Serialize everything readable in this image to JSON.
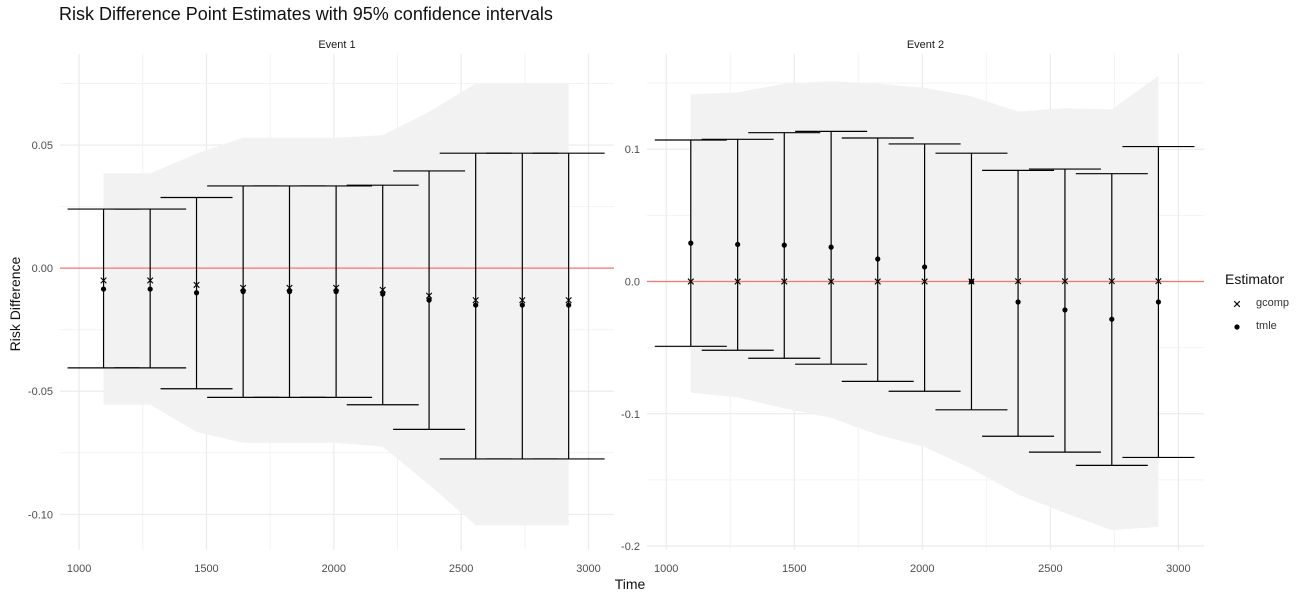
{
  "chart_data": {
    "type": "errorbar",
    "title": "Risk Difference Point Estimates with 95% confidence intervals",
    "xlabel": "Time",
    "ylabel": "Risk Difference",
    "legend": {
      "title": "Estimator",
      "position": "right",
      "entries": [
        "gcomp",
        "tmle"
      ]
    },
    "reference_line": {
      "y": 0,
      "color": "#f8766d"
    },
    "colors": {
      "band": "#f2f2f2",
      "grid_major": "#ebebeb",
      "grid_minor": "#f3f3f3",
      "marks": "#000000"
    },
    "panels": [
      {
        "strip": "Event 1",
        "xlim": [
          925,
          3100
        ],
        "ylim": [
          -0.1145,
          0.087
        ],
        "xticks": [
          1000,
          1500,
          2000,
          2500,
          3000
        ],
        "xtick_labels": [
          "1000",
          "1500",
          "2000",
          "2500",
          "3000"
        ],
        "yticks": [
          -0.1,
          -0.05,
          0.0,
          0.05
        ],
        "ytick_labels": [
          "-0.10",
          "-0.05",
          "0.00",
          "0.05"
        ],
        "time": [
          1096,
          1279,
          1461,
          1644,
          1826,
          2009,
          2192,
          2374,
          2557,
          2740,
          2922
        ],
        "gcomp": [
          -0.005,
          -0.005,
          -0.0068,
          -0.008,
          -0.008,
          -0.008,
          -0.0088,
          -0.0112,
          -0.013,
          -0.013,
          -0.013
        ],
        "tmle": [
          -0.0085,
          -0.0085,
          -0.01,
          -0.0095,
          -0.0095,
          -0.0095,
          -0.0105,
          -0.013,
          -0.015,
          -0.015,
          -0.015
        ],
        "ci_lower": [
          -0.0405,
          -0.0405,
          -0.049,
          -0.0525,
          -0.0525,
          -0.0525,
          -0.0555,
          -0.0655,
          -0.0775,
          -0.0775,
          -0.0775
        ],
        "ci_upper": [
          0.024,
          0.024,
          0.0287,
          0.0334,
          0.0334,
          0.0334,
          0.0337,
          0.0395,
          0.0467,
          0.0467,
          0.0467
        ],
        "band_x": [
          1096,
          1279,
          1461,
          1644,
          1826,
          2009,
          2192,
          2374,
          2557,
          2740,
          2922
        ],
        "band_upper": [
          0.0385,
          0.0385,
          0.0465,
          0.053,
          0.053,
          0.053,
          0.054,
          0.0635,
          0.075,
          0.075,
          0.075
        ],
        "band_lower": [
          -0.0555,
          -0.0555,
          -0.0665,
          -0.071,
          -0.071,
          -0.071,
          -0.0725,
          -0.088,
          -0.1045,
          -0.1045,
          -0.1045
        ]
      },
      {
        "strip": "Event 2",
        "xlim": [
          925,
          3100
        ],
        "ylim": [
          -0.203,
          0.172
        ],
        "xticks": [
          1000,
          1500,
          2000,
          2500,
          3000
        ],
        "xtick_labels": [
          "1000",
          "1500",
          "2000",
          "2500",
          "3000"
        ],
        "yticks": [
          -0.2,
          -0.1,
          0.0,
          0.1
        ],
        "ytick_labels": [
          "-0.2",
          "-0.1",
          "0.0",
          "0.1"
        ],
        "time": [
          1096,
          1279,
          1461,
          1644,
          1826,
          2009,
          2192,
          2374,
          2557,
          2740,
          2922
        ],
        "gcomp": [
          0.0,
          0.0,
          0.0,
          0.0,
          0.0,
          0.0,
          0.0,
          0.0002,
          0.0002,
          0.0002,
          0.0002
        ],
        "tmle": [
          0.029,
          0.028,
          0.0275,
          0.026,
          0.017,
          0.011,
          0.0,
          -0.0155,
          -0.0215,
          -0.0285,
          -0.0155
        ],
        "ci_lower": [
          -0.049,
          -0.052,
          -0.058,
          -0.0625,
          -0.0755,
          -0.083,
          -0.097,
          -0.117,
          -0.129,
          -0.139,
          -0.133
        ],
        "ci_upper": [
          0.107,
          0.1075,
          0.1125,
          0.1135,
          0.1085,
          0.104,
          0.097,
          0.084,
          0.085,
          0.0815,
          0.102
        ],
        "band_x": [
          1096,
          1279,
          1461,
          1644,
          1826,
          2009,
          2192,
          2374,
          2557,
          2740,
          2922
        ],
        "band_upper": [
          0.1415,
          0.143,
          0.1495,
          0.1515,
          0.1495,
          0.1465,
          0.14,
          0.1285,
          0.131,
          0.13,
          0.1555
        ],
        "band_lower": [
          -0.084,
          -0.0875,
          -0.096,
          -0.103,
          -0.116,
          -0.125,
          -0.1415,
          -0.161,
          -0.175,
          -0.188,
          -0.1855
        ]
      }
    ]
  }
}
